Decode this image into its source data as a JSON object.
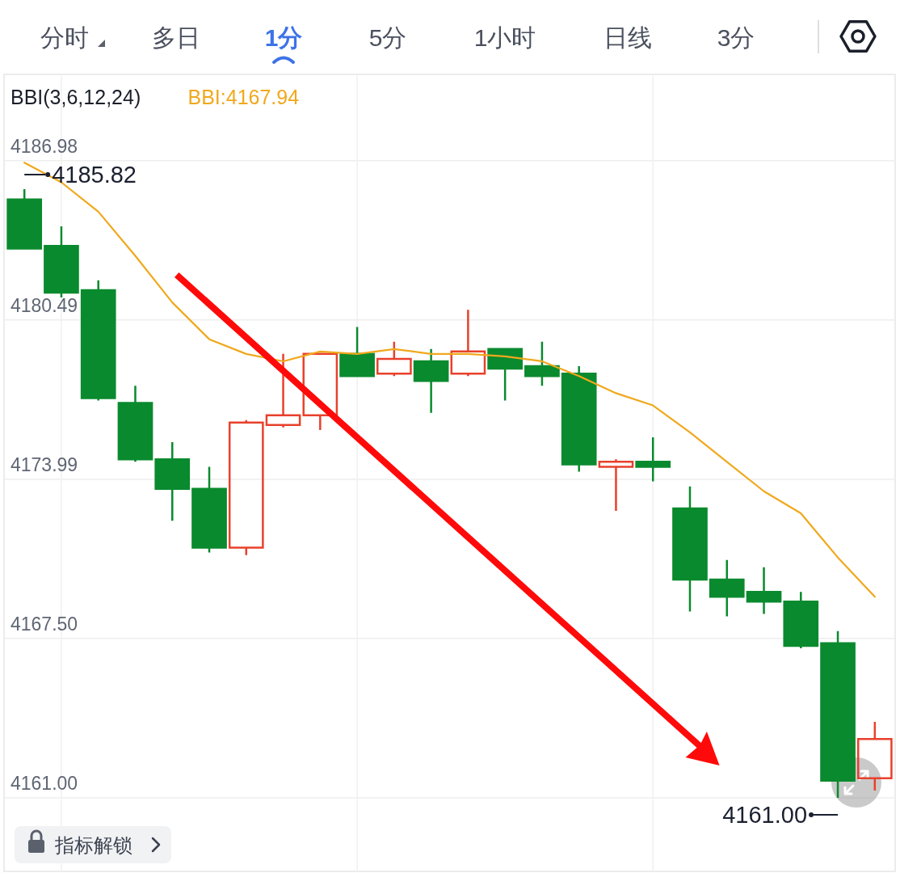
{
  "chart_data": {
    "type": "candlestick",
    "categories": [
      null,
      null,
      null,
      null,
      null,
      null,
      null,
      null,
      null,
      null,
      null,
      null,
      null,
      null,
      null,
      null,
      null,
      null,
      null,
      null,
      null,
      null,
      null,
      null
    ],
    "ohlc": [
      [
        4185.4,
        4185.82,
        4183.4,
        4183.4
      ],
      [
        4183.5,
        4184.3,
        4181.4,
        4181.6
      ],
      [
        4181.7,
        4182.1,
        4177.2,
        4177.3
      ],
      [
        4177.1,
        4177.8,
        4174.7,
        4174.8
      ],
      [
        4174.8,
        4175.5,
        4172.3,
        4173.6
      ],
      [
        4173.6,
        4174.5,
        4171.0,
        4171.2
      ],
      [
        4171.2,
        4176.4,
        4170.9,
        4176.3
      ],
      [
        4176.2,
        4179.1,
        4176.1,
        4176.6
      ],
      [
        4176.6,
        4179.1,
        4176.0,
        4179.1
      ],
      [
        4179.1,
        4180.2,
        4178.2,
        4178.2
      ],
      [
        4178.3,
        4179.6,
        4178.2,
        4178.9
      ],
      [
        4178.8,
        4179.3,
        4176.7,
        4178.0
      ],
      [
        4178.3,
        4180.9,
        4178.2,
        4179.2
      ],
      [
        4179.3,
        4179.3,
        4177.2,
        4178.5
      ],
      [
        4178.6,
        4179.6,
        4177.8,
        4178.2
      ],
      [
        4178.3,
        4178.6,
        4174.3,
        4174.6
      ],
      [
        4174.5,
        4174.8,
        4172.7,
        4174.7
      ],
      [
        4174.7,
        4175.7,
        4173.9,
        4174.5
      ],
      [
        4172.8,
        4173.7,
        4168.6,
        4169.9
      ],
      [
        4169.9,
        4170.7,
        4168.4,
        4169.2
      ],
      [
        4169.4,
        4170.4,
        4168.5,
        4169.0
      ],
      [
        4169.0,
        4169.4,
        4167.1,
        4167.2
      ],
      [
        4167.3,
        4167.8,
        4161.0,
        4161.7
      ],
      [
        4161.8,
        4164.1,
        4161.3,
        4163.4
      ]
    ],
    "colors": [
      "#0a8a2e",
      "#0a8a2e",
      "#0a8a2e",
      "#0a8a2e",
      "#0a8a2e",
      "#0a8a2e",
      "#e8412c",
      "#e8412c",
      "#e8412c",
      "#0a8a2e",
      "#e8412c",
      "#0a8a2e",
      "#e8412c",
      "#0a8a2e",
      "#0a8a2e",
      "#0a8a2e",
      "#e8412c",
      "#0a8a2e",
      "#0a8a2e",
      "#0a8a2e",
      "#0a8a2e",
      "#0a8a2e",
      "#0a8a2e",
      "#e8412c"
    ],
    "series": [
      {
        "type": "line",
        "name": "BBI:4167.94",
        "color": "#f0a81c",
        "values": [
          4186.9,
          4186.1,
          4184.9,
          4183.1,
          4181.2,
          4179.7,
          4179.1,
          4178.8,
          4179.2,
          4179.1,
          4179.3,
          4179.1,
          4179.1,
          4179.0,
          4178.8,
          4178.2,
          4177.5,
          4177.0,
          4175.9,
          4174.7,
          4173.5,
          4172.6,
          4170.8,
          4169.2
        ]
      }
    ],
    "legend_title": "BBI(3,6,12,24)",
    "legend": "top left",
    "ylim": [
      4158.0,
      4190.5
    ],
    "yticks": [
      {
        "value": 4161,
        "label": "4161.00"
      },
      {
        "value": 4167.5,
        "label": "4167.50"
      },
      4173.99,
      4180.49,
      4186.98
    ],
    "tick_labels": "y",
    "grid": true,
    "annotations": [
      "分时",
      "多日",
      "1分",
      "5分",
      "1小时",
      "日线",
      "3分",
      "指标解锁",
      "4185.82",
      "4161.00"
    ]
  }
}
